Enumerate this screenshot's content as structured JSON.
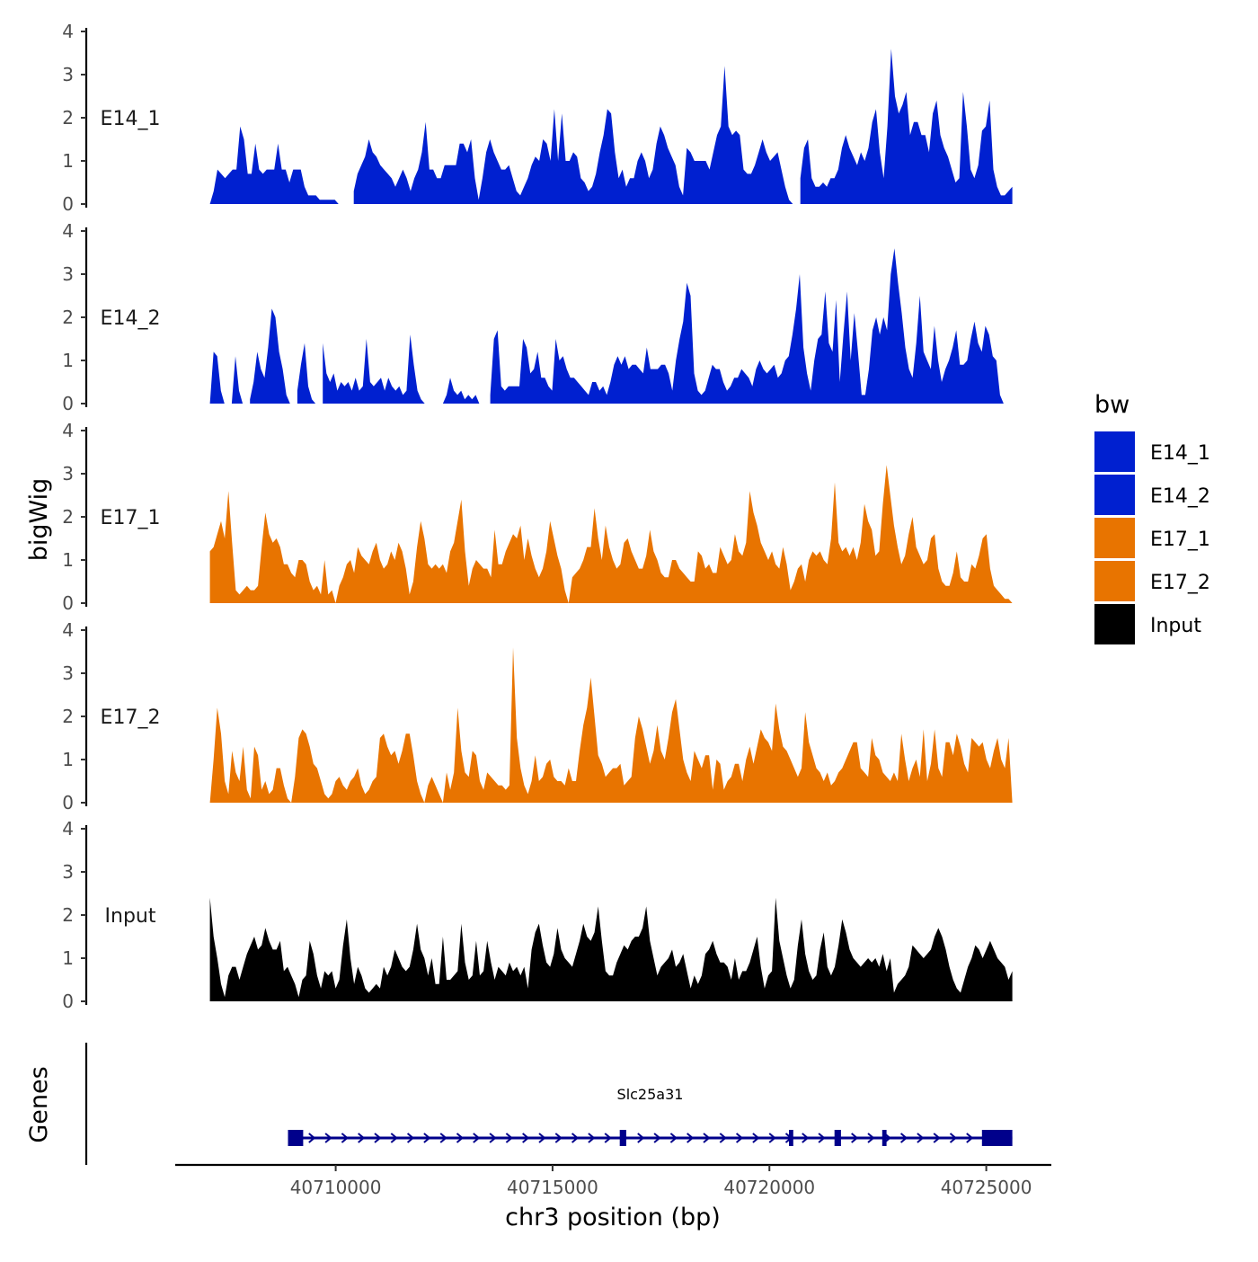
{
  "chart_data": {
    "type": "area",
    "xlabel": "chr3 position (bp)",
    "ylabel": "bigWig",
    "gene_panel_label": "Genes",
    "xlim": [
      40706300,
      40726500
    ],
    "x_ticks": [
      40710000,
      40715000,
      40720000,
      40725000
    ],
    "x_tick_labels": [
      "40710000",
      "40715000",
      "40720000",
      "40725000"
    ],
    "y_ticks": [
      0,
      1,
      2,
      3,
      4
    ],
    "y_tick_labels": [
      "0",
      "1",
      "2",
      "3",
      "4"
    ],
    "ylim": [
      0,
      4
    ],
    "legend": {
      "title": "bw",
      "entries": [
        {
          "name": "E14_1",
          "color": "#0020D0"
        },
        {
          "name": "E14_2",
          "color": "#0020D0"
        },
        {
          "name": "E17_1",
          "color": "#E87400"
        },
        {
          "name": "E17_2",
          "color": "#E87400"
        },
        {
          "name": "Input",
          "color": "#000000"
        }
      ]
    },
    "series": [
      {
        "name": "E14_1",
        "color": "#0020D0",
        "x_range": [
          40707100,
          40725600
        ],
        "values": [
          0,
          0.3,
          0.8,
          0.7,
          0.6,
          0.7,
          0.8,
          0.8,
          1.8,
          1.5,
          0.7,
          0.7,
          1.4,
          0.8,
          0.7,
          0.8,
          0.8,
          0.8,
          1.4,
          0.8,
          0.8,
          0.5,
          0.8,
          0.8,
          0.8,
          0.4,
          0.2,
          0.2,
          0.2,
          0.1,
          0.1,
          0.1,
          0.1,
          0.1,
          0,
          null,
          null,
          null,
          0.3,
          0.7,
          0.9,
          1.1,
          1.5,
          1.2,
          1.1,
          0.9,
          0.8,
          0.7,
          0.6,
          0.4,
          0.6,
          0.8,
          0.6,
          0.3,
          0.6,
          0.8,
          1.2,
          1.9,
          0.8,
          0.8,
          0.6,
          0.6,
          0.9,
          0.9,
          0.9,
          0.9,
          1.4,
          1.4,
          1.2,
          1.5,
          0.6,
          0.1,
          0.6,
          1.2,
          1.5,
          1.2,
          1.0,
          0.8,
          0.8,
          0.9,
          0.6,
          0.3,
          0.2,
          0.4,
          0.6,
          0.9,
          1.1,
          1.0,
          1.5,
          1.4,
          1.0,
          2.2,
          1.0,
          2.1,
          1.0,
          1.0,
          1.2,
          1.1,
          0.6,
          0.5,
          0.3,
          0.4,
          0.7,
          1.2,
          1.6,
          2.2,
          2.1,
          1.2,
          0.6,
          0.8,
          0.4,
          0.6,
          0.6,
          1.0,
          1.2,
          1.0,
          0.6,
          0.8,
          1.4,
          1.8,
          1.6,
          1.3,
          1.1,
          0.9,
          0.4,
          0.2,
          1.3,
          1.2,
          1.0,
          1.0,
          1.0,
          1.0,
          0.8,
          1.2,
          1.6,
          1.8,
          3.2,
          1.8,
          1.6,
          1.7,
          1.6,
          0.8,
          0.7,
          0.7,
          0.9,
          1.2,
          1.5,
          1.2,
          1.0,
          1.1,
          1.2,
          0.8,
          0.4,
          0.1,
          0,
          null,
          0.6,
          1.3,
          1.5,
          0.6,
          0.4,
          0.4,
          0.5,
          0.4,
          0.6,
          0.6,
          0.8,
          1.3,
          1.6,
          1.3,
          1.1,
          0.9,
          1.2,
          1.0,
          1.3,
          1.9,
          2.2,
          1.2,
          0.6,
          1.8,
          3.6,
          2.5,
          2.1,
          2.3,
          2.6,
          1.6,
          1.9,
          1.9,
          1.6,
          1.6,
          1.2,
          2.1,
          2.4,
          1.6,
          1.3,
          1.1,
          0.8,
          0.5,
          0.6,
          2.6,
          1.8,
          0.8,
          0.6,
          0.9,
          1.7,
          1.8,
          2.4,
          0.8,
          0.4,
          0.2,
          0.2,
          0.3,
          0.4
        ],
        "label": "E14_1"
      },
      {
        "name": "E14_2",
        "color": "#0020D0",
        "x_range": [
          40707100,
          40725400
        ],
        "values": [
          0,
          1.2,
          1.1,
          0.3,
          0,
          null,
          0,
          1.1,
          0.3,
          0,
          null,
          0.1,
          0.5,
          1.2,
          0.8,
          0.6,
          1.3,
          2.2,
          2.0,
          1.2,
          0.8,
          0.2,
          0,
          null,
          0.3,
          0.9,
          1.4,
          0.4,
          0.1,
          0,
          null,
          1.4,
          0.7,
          0.5,
          0.7,
          0.3,
          0.5,
          0.4,
          0.5,
          0.3,
          0.6,
          0.3,
          0.4,
          1.5,
          0.5,
          0.4,
          0.5,
          0.6,
          0.3,
          0.6,
          0.4,
          0.3,
          0.4,
          0.2,
          0.3,
          1.6,
          0.9,
          0.3,
          0.1,
          0,
          null,
          null,
          null,
          null,
          0,
          0.2,
          0.6,
          0.3,
          0.2,
          0.3,
          0.1,
          0.2,
          0.1,
          0.2,
          0,
          null,
          null,
          0.2,
          1.5,
          1.7,
          0.4,
          0.3,
          0.4,
          0.4,
          0.4,
          0.4,
          1.5,
          1.3,
          0.7,
          0.8,
          1.2,
          0.6,
          0.6,
          0.4,
          0.3,
          1.5,
          1.0,
          1.1,
          0.8,
          0.6,
          0.6,
          0.5,
          0.4,
          0.3,
          0.2,
          0.5,
          0.5,
          0.3,
          0.4,
          0.2,
          0.5,
          0.9,
          1.1,
          0.9,
          1.1,
          0.8,
          0.9,
          0.9,
          0.8,
          0.7,
          1.3,
          0.8,
          0.8,
          0.8,
          0.9,
          0.9,
          0.7,
          0.3,
          1.0,
          1.5,
          1.9,
          2.8,
          2.5,
          0.7,
          0.3,
          0.2,
          0.3,
          0.6,
          0.9,
          0.8,
          0.8,
          0.5,
          0.3,
          0.4,
          0.6,
          0.6,
          0.8,
          0.7,
          0.6,
          0.4,
          0.8,
          1.0,
          0.8,
          0.7,
          0.8,
          0.9,
          0.6,
          0.7,
          1.0,
          1.1,
          1.6,
          2.2,
          3.0,
          1.3,
          0.7,
          0.3,
          1.0,
          1.5,
          1.6,
          2.6,
          1.4,
          1.2,
          2.4,
          0.5,
          1.6,
          2.6,
          1.0,
          2.1,
          1.2,
          0.2,
          0.2,
          0.8,
          1.7,
          2.0,
          1.6,
          2.0,
          1.7,
          3.0,
          3.6,
          2.8,
          2.1,
          1.3,
          0.8,
          0.6,
          1.4,
          2.5,
          1.2,
          1.0,
          0.8,
          1.8,
          1.0,
          0.5,
          0.8,
          1.0,
          1.3,
          1.7,
          0.9,
          0.9,
          1.0,
          1.5,
          1.9,
          1.4,
          1.2,
          1.8,
          1.6,
          1.1,
          1.0,
          0.2,
          0
        ],
        "label": "E14_2"
      },
      {
        "name": "E17_1",
        "color": "#E87400",
        "x_range": [
          40707100,
          40725600
        ],
        "values": [
          1.2,
          1.3,
          1.6,
          1.9,
          1.5,
          2.6,
          1.4,
          0.3,
          0.2,
          0.3,
          0.4,
          0.3,
          0.3,
          0.4,
          1.3,
          2.1,
          1.6,
          1.4,
          1.5,
          1.3,
          0.9,
          0.9,
          0.7,
          0.6,
          1.0,
          1.0,
          0.9,
          0.5,
          0.3,
          0.4,
          0.2,
          1.0,
          0.2,
          0.3,
          0,
          0.4,
          0.6,
          0.9,
          1.0,
          0.7,
          1.3,
          1.1,
          1.0,
          0.9,
          1.2,
          1.4,
          1.0,
          0.8,
          0.9,
          1.2,
          1.0,
          1.4,
          1.2,
          0.8,
          0.2,
          0.5,
          1.3,
          1.9,
          1.5,
          0.9,
          0.8,
          0.9,
          0.8,
          0.9,
          0.7,
          1.2,
          1.4,
          1.9,
          2.4,
          1.2,
          0.4,
          0.8,
          1.0,
          0.9,
          0.8,
          0.8,
          0.6,
          1.7,
          0.9,
          0.9,
          1.2,
          1.4,
          1.6,
          1.5,
          1.8,
          1.0,
          1.5,
          1.1,
          0.8,
          0.6,
          0.8,
          1.2,
          1.9,
          1.5,
          1.1,
          0.8,
          0.3,
          0,
          0.6,
          0.7,
          0.8,
          1.0,
          1.3,
          1.3,
          2.2,
          1.5,
          1.0,
          1.8,
          1.3,
          1.0,
          0.8,
          0.9,
          1.4,
          1.5,
          1.2,
          1.0,
          0.8,
          0.8,
          1.1,
          1.7,
          1.2,
          1.0,
          0.7,
          0.6,
          0.6,
          1.0,
          1.0,
          0.8,
          0.7,
          0.6,
          0.5,
          0.5,
          1.2,
          1.1,
          0.8,
          0.9,
          0.7,
          0.7,
          1.3,
          1.1,
          0.9,
          1.0,
          1.6,
          1.2,
          1.1,
          1.4,
          2.6,
          2.1,
          1.8,
          1.4,
          1.2,
          1.0,
          1.2,
          0.9,
          0.8,
          1.3,
          0.9,
          0.3,
          0.5,
          0.8,
          0.9,
          0.5,
          1.0,
          1.2,
          1.1,
          1.2,
          1.0,
          0.9,
          1.5,
          2.8,
          1.4,
          1.2,
          1.3,
          1.1,
          1.3,
          1.0,
          1.4,
          2.3,
          1.9,
          1.7,
          1.1,
          1.2,
          2.3,
          3.2,
          2.5,
          1.8,
          1.3,
          0.9,
          1.1,
          1.6,
          2.0,
          1.3,
          1.1,
          0.9,
          1.0,
          1.5,
          1.6,
          0.8,
          0.5,
          0.4,
          0.4,
          0.7,
          1.2,
          0.6,
          0.5,
          0.5,
          0.9,
          0.8,
          1.1,
          1.5,
          1.6,
          0.8,
          0.4,
          0.3,
          0.2,
          0.1,
          0.1,
          0
        ],
        "label": "E17_1"
      },
      {
        "name": "E17_2",
        "color": "#E87400",
        "x_range": [
          40707100,
          40725600
        ],
        "values": [
          0,
          1.0,
          2.2,
          1.6,
          0.5,
          0.2,
          1.2,
          0.7,
          0.5,
          1.3,
          0.3,
          0.1,
          1.3,
          1.1,
          0.3,
          0.5,
          0.2,
          0.3,
          0.8,
          0.8,
          0.4,
          0.1,
          0,
          0.6,
          1.5,
          1.7,
          1.6,
          1.3,
          0.9,
          0.8,
          0.5,
          0.2,
          0.1,
          0.2,
          0.5,
          0.6,
          0.4,
          0.3,
          0.5,
          0.6,
          0.8,
          0.4,
          0.2,
          0.3,
          0.5,
          0.6,
          1.5,
          1.6,
          1.3,
          1.1,
          1.2,
          0.9,
          1.2,
          1.6,
          1.6,
          1.1,
          0.5,
          0.2,
          0,
          0.4,
          0.6,
          0.4,
          0.2,
          0,
          0.7,
          0.3,
          0.7,
          2.2,
          1.2,
          0.7,
          0.6,
          1.2,
          1.1,
          0.5,
          0.3,
          0.7,
          0.6,
          0.5,
          0.4,
          0.4,
          0.3,
          0.4,
          3.6,
          1.5,
          0.8,
          0.4,
          0.2,
          0.5,
          1.1,
          0.5,
          0.6,
          0.9,
          1.0,
          0.6,
          0.5,
          0.5,
          0.4,
          0.8,
          0.5,
          0.5,
          1.2,
          1.8,
          2.2,
          2.9,
          2.0,
          1.1,
          0.9,
          0.6,
          0.7,
          0.8,
          0.8,
          0.9,
          0.4,
          0.5,
          0.6,
          1.5,
          2.0,
          1.7,
          1.3,
          0.9,
          1.2,
          1.8,
          1.2,
          1.0,
          1.5,
          2.1,
          2.4,
          1.7,
          1.0,
          0.7,
          0.5,
          1.2,
          1.0,
          0.8,
          1.1,
          1.1,
          0.3,
          1.0,
          0.9,
          0.3,
          0.5,
          0.6,
          0.9,
          0.9,
          0.5,
          1.0,
          1.3,
          0.9,
          1.3,
          1.7,
          1.5,
          1.4,
          1.2,
          2.3,
          1.7,
          1.3,
          1.2,
          1.0,
          0.8,
          0.6,
          0.8,
          2.1,
          1.4,
          1.1,
          0.8,
          0.7,
          0.5,
          0.7,
          0.4,
          0.5,
          0.7,
          0.8,
          1.0,
          1.2,
          1.4,
          1.4,
          0.8,
          0.7,
          0.6,
          1.5,
          1.1,
          1.0,
          0.7,
          0.6,
          0.5,
          0.7,
          0.5,
          1.6,
          1.0,
          0.5,
          0.8,
          1.0,
          0.6,
          1.7,
          0.5,
          0.9,
          1.7,
          0.8,
          0.6,
          1.4,
          1.4,
          1.1,
          1.6,
          1.3,
          0.9,
          0.7,
          1.5,
          1.4,
          1.3,
          1.4,
          1.0,
          0.8,
          1.2,
          1.5,
          1.0,
          0.8,
          1.5,
          0
        ],
        "label": "E17_2"
      },
      {
        "name": "Input",
        "color": "#000000",
        "x_range": [
          40707100,
          40725600
        ],
        "values": [
          2.4,
          1.5,
          1.0,
          0.4,
          0.1,
          0.6,
          0.8,
          0.8,
          0.5,
          0.8,
          1.1,
          1.3,
          1.5,
          1.2,
          1.3,
          1.7,
          1.4,
          1.2,
          1.2,
          1.4,
          0.7,
          0.8,
          0.6,
          0.4,
          0.1,
          0.5,
          0.6,
          1.4,
          1.1,
          0.6,
          0.3,
          0.7,
          0.6,
          0.7,
          0.3,
          0.5,
          1.3,
          1.9,
          1.0,
          0.4,
          0.8,
          0.6,
          0.3,
          0.2,
          0.3,
          0.4,
          0.3,
          0.8,
          0.6,
          0.8,
          1.2,
          1.0,
          0.8,
          0.7,
          0.8,
          1.2,
          1.8,
          1.2,
          1.0,
          0.6,
          1.0,
          0.4,
          0.4,
          1.5,
          0.5,
          0.5,
          0.6,
          0.7,
          1.8,
          0.9,
          0.5,
          0.6,
          1.4,
          0.6,
          0.7,
          1.4,
          0.9,
          0.5,
          0.8,
          0.7,
          0.6,
          0.9,
          0.7,
          0.8,
          0.6,
          0.8,
          0.3,
          1.2,
          1.6,
          1.8,
          1.3,
          0.9,
          0.8,
          1.1,
          1.7,
          1.2,
          1.0,
          0.9,
          0.8,
          1.1,
          1.4,
          1.8,
          1.5,
          1.4,
          1.6,
          2.2,
          1.4,
          0.7,
          0.6,
          0.6,
          0.9,
          1.1,
          1.3,
          1.2,
          1.4,
          1.5,
          1.5,
          1.7,
          2.2,
          1.4,
          1.0,
          0.6,
          0.8,
          0.9,
          1.0,
          1.2,
          0.8,
          0.9,
          1.1,
          0.7,
          0.3,
          0.6,
          0.4,
          0.6,
          1.1,
          1.2,
          1.4,
          1.1,
          0.9,
          0.9,
          0.8,
          0.5,
          1.0,
          0.5,
          0.7,
          0.7,
          0.9,
          1.2,
          1.5,
          0.8,
          0.3,
          0.6,
          0.7,
          2.4,
          1.4,
          1.0,
          0.6,
          0.3,
          0.5,
          1.3,
          1.9,
          1.1,
          0.7,
          0.5,
          0.6,
          1.2,
          1.6,
          0.8,
          0.6,
          0.8,
          1.3,
          1.9,
          1.6,
          1.2,
          1.0,
          0.9,
          0.8,
          0.9,
          1.0,
          0.9,
          1.0,
          0.8,
          1.1,
          0.7,
          1.0,
          0.2,
          0.4,
          0.5,
          0.6,
          0.8,
          1.3,
          1.2,
          1.1,
          1.0,
          1.1,
          1.2,
          1.5,
          1.7,
          1.5,
          1.2,
          0.8,
          0.5,
          0.3,
          0.2,
          0.5,
          0.8,
          1.0,
          1.3,
          1.2,
          1.0,
          1.2,
          1.4,
          1.2,
          1.0,
          0.9,
          0.8,
          0.5,
          0.7
        ],
        "label": "Input"
      }
    ],
    "gene": {
      "name": "Slc25a31",
      "start": 40708900,
      "end": 40725600,
      "strand": "+",
      "exons": [
        [
          40708900,
          40709250
        ],
        [
          40716550,
          40716700
        ],
        [
          40720450,
          40720550
        ],
        [
          40721500,
          40721650
        ],
        [
          40722600,
          40722700
        ],
        [
          40724900,
          40725600
        ]
      ]
    }
  }
}
